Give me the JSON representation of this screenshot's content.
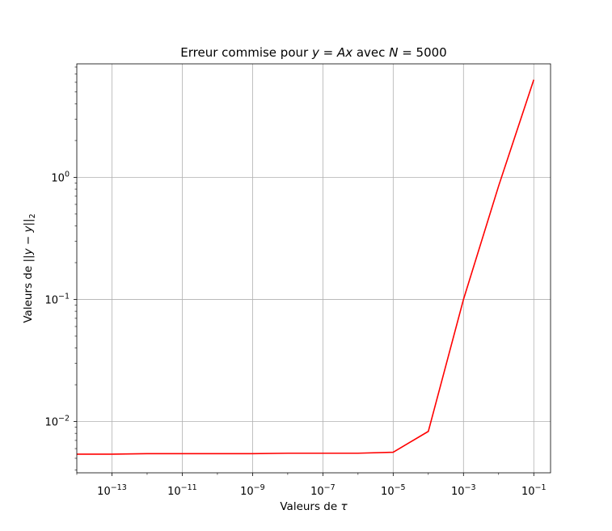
{
  "chart_data": {
    "type": "line",
    "title_parts": {
      "prefix": "Erreur commise pour ",
      "y_sym": "y",
      "equals_1": " = ",
      "a_sym": "A",
      "x_sym": "x",
      "middle": " avec ",
      "n_sym": "N",
      "equals_2": " = ",
      "n_value": "5000"
    },
    "xlabel_parts": {
      "text": "Valeurs de ",
      "symbol": "τ"
    },
    "ylabel_parts": {
      "text": "Valeurs de ",
      "open": "||",
      "y1": "y",
      "minus": " − ",
      "y2": "y",
      "close": "||",
      "sub": "2"
    },
    "xscale": "log",
    "yscale": "log",
    "xlim": [
      1e-14,
      0.3
    ],
    "ylim": [
      0.0038,
      8.5
    ],
    "grid": true,
    "x_ticks": [
      {
        "value": 1e-13,
        "base": "10",
        "exp": "−13"
      },
      {
        "value": 1e-11,
        "base": "10",
        "exp": "−11"
      },
      {
        "value": 1e-09,
        "base": "10",
        "exp": "−9"
      },
      {
        "value": 1e-07,
        "base": "10",
        "exp": "−7"
      },
      {
        "value": 1e-05,
        "base": "10",
        "exp": "−5"
      },
      {
        "value": 0.001,
        "base": "10",
        "exp": "−3"
      },
      {
        "value": 0.1,
        "base": "10",
        "exp": "−1"
      }
    ],
    "y_ticks": [
      {
        "value": 0.01,
        "base": "10",
        "exp": "−2"
      },
      {
        "value": 0.1,
        "base": "10",
        "exp": "−1"
      },
      {
        "value": 1,
        "base": "10",
        "exp": "0"
      }
    ],
    "series": [
      {
        "color": "#ff0000",
        "x": [
          1e-14,
          1e-13,
          1e-12,
          1e-11,
          1e-10,
          1e-09,
          1e-08,
          1e-07,
          1e-06,
          1e-05,
          0.0001,
          0.001,
          0.01,
          0.1
        ],
        "y": [
          0.0054,
          0.0054,
          0.00545,
          0.00545,
          0.00545,
          0.00545,
          0.0055,
          0.0055,
          0.0055,
          0.0056,
          0.0083,
          0.1,
          0.85,
          6.3
        ]
      }
    ]
  }
}
